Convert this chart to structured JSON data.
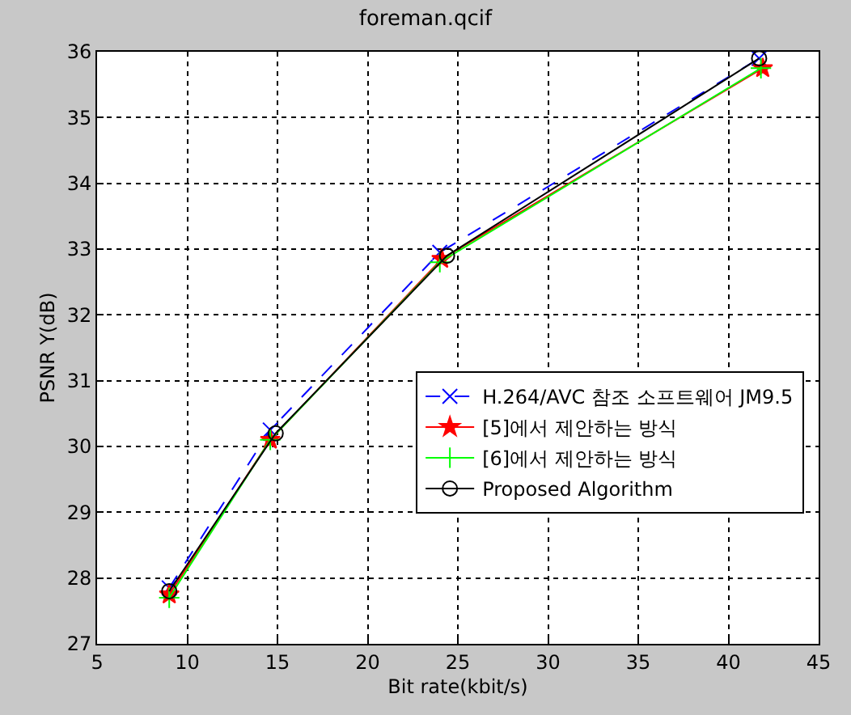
{
  "chart_data": {
    "type": "line",
    "title": "foreman.qcif",
    "xlabel": "Bit rate(kbit/s)",
    "ylabel": "PSNR Y(dB)",
    "xlim": [
      5,
      45
    ],
    "xticks": [
      5,
      10,
      15,
      20,
      25,
      30,
      35,
      40,
      45
    ],
    "ylim": [
      27,
      36
    ],
    "yticks": [
      27,
      28,
      29,
      30,
      31,
      32,
      33,
      34,
      35,
      36
    ],
    "grid": true,
    "legend": "bottom right",
    "series": [
      {
        "name": "H.264/AVC 참조 소프트웨어 JM9.5",
        "color": "#0000ff",
        "marker": "cross",
        "line_style": "dashed",
        "x": [
          9.0,
          14.6,
          24.0,
          41.7
        ],
        "values": [
          27.85,
          30.25,
          32.95,
          35.9
        ]
      },
      {
        "name": "[5]에서 제안하는 방식",
        "color": "#ff0000",
        "marker": "star",
        "line_style": "solid",
        "x": [
          9.0,
          14.6,
          24.1,
          41.9
        ],
        "values": [
          27.75,
          30.1,
          32.85,
          35.75
        ]
      },
      {
        "name": "[6]에서 제안하는 방식",
        "color": "#00ff00",
        "marker": "plus",
        "line_style": "solid",
        "x": [
          9.0,
          14.6,
          24.0,
          41.8
        ],
        "values": [
          27.7,
          30.1,
          32.8,
          35.75
        ]
      },
      {
        "name": "Proposed Algorithm",
        "color": "#000000",
        "marker": "circle",
        "line_style": "solid",
        "x": [
          9.0,
          14.9,
          24.4,
          41.7
        ],
        "values": [
          27.8,
          30.2,
          32.9,
          35.9
        ]
      }
    ]
  }
}
